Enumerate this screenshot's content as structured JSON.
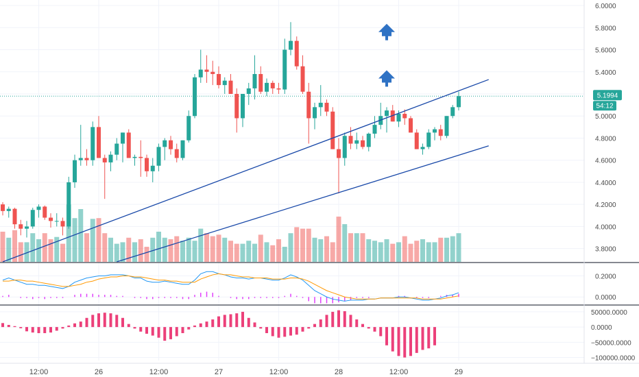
{
  "chart_data": [
    {
      "type": "candlestick",
      "y_ticks": [
        "6.0000",
        "5.8000",
        "5.6000",
        "5.4000",
        "5.2000",
        "5.0000",
        "4.8000",
        "4.6000",
        "4.4000",
        "4.2000",
        "4.0000",
        "3.8000"
      ],
      "ylim": [
        3.68,
        6.05
      ],
      "x_ticks": [
        {
          "label": "12:00",
          "bar": 6
        },
        {
          "label": "26",
          "bar": 16
        },
        {
          "label": "12:00",
          "bar": 26
        },
        {
          "label": "27",
          "bar": 36
        },
        {
          "label": "12:00",
          "bar": 46
        },
        {
          "label": "28",
          "bar": 56
        },
        {
          "label": "12:00",
          "bar": 66
        },
        {
          "label": "29",
          "bar": 76
        }
      ],
      "candles": [
        [
          4.2,
          4.22,
          4.1,
          4.14
        ],
        [
          4.14,
          4.18,
          4.08,
          4.16
        ],
        [
          4.16,
          4.17,
          3.98,
          4.02
        ],
        [
          4.02,
          4.06,
          3.92,
          3.98
        ],
        [
          3.98,
          4.05,
          3.9,
          4.0
        ],
        [
          4.0,
          4.17,
          3.98,
          4.15
        ],
        [
          4.15,
          4.2,
          4.08,
          4.18
        ],
        [
          4.18,
          4.19,
          4.06,
          4.08
        ],
        [
          4.08,
          4.12,
          3.99,
          4.05
        ],
        [
          4.05,
          4.12,
          4.0,
          4.05
        ],
        [
          4.05,
          4.08,
          3.92,
          4.0
        ],
        [
          4.0,
          4.45,
          3.98,
          4.4
        ],
        [
          4.4,
          4.65,
          4.35,
          4.6
        ],
        [
          4.6,
          4.92,
          4.55,
          4.62
        ],
        [
          4.62,
          4.7,
          4.55,
          4.6
        ],
        [
          4.6,
          4.95,
          4.55,
          4.9
        ],
        [
          4.9,
          5.0,
          4.62,
          4.62
        ],
        [
          4.62,
          4.65,
          4.25,
          4.58
        ],
        [
          4.58,
          4.68,
          4.5,
          4.65
        ],
        [
          4.65,
          4.8,
          4.6,
          4.75
        ],
        [
          4.75,
          4.85,
          4.58,
          4.85
        ],
        [
          4.85,
          4.88,
          4.62,
          4.62
        ],
        [
          4.62,
          4.65,
          4.55,
          4.63
        ],
        [
          4.63,
          4.78,
          4.45,
          4.62
        ],
        [
          4.62,
          4.65,
          4.45,
          4.5
        ],
        [
          4.5,
          4.62,
          4.4,
          4.55
        ],
        [
          4.55,
          4.75,
          4.5,
          4.72
        ],
        [
          4.72,
          4.8,
          4.6,
          4.78
        ],
        [
          4.78,
          4.82,
          4.65,
          4.7
        ],
        [
          4.7,
          4.75,
          4.58,
          4.62
        ],
        [
          4.62,
          4.78,
          4.6,
          4.78
        ],
        [
          4.78,
          5.05,
          4.76,
          5.0
        ],
        [
          5.0,
          5.38,
          4.98,
          5.35
        ],
        [
          5.35,
          5.6,
          5.3,
          5.42
        ],
        [
          5.42,
          5.55,
          5.3,
          5.4
        ],
        [
          5.4,
          5.5,
          5.28,
          5.38
        ],
        [
          5.38,
          5.45,
          5.25,
          5.28
        ],
        [
          5.28,
          5.35,
          5.2,
          5.32
        ],
        [
          5.32,
          5.38,
          5.2,
          5.2
        ],
        [
          5.2,
          5.25,
          4.85,
          4.98
        ],
        [
          4.98,
          5.2,
          4.9,
          5.2
        ],
        [
          5.2,
          5.3,
          5.1,
          5.25
        ],
        [
          5.25,
          5.55,
          5.15,
          5.38
        ],
        [
          5.38,
          5.45,
          5.2,
          5.22
        ],
        [
          5.22,
          5.34,
          5.18,
          5.3
        ],
        [
          5.3,
          5.32,
          5.2,
          5.25
        ],
        [
          5.25,
          5.3,
          5.2,
          5.24
        ],
        [
          5.24,
          5.7,
          5.2,
          5.6
        ],
        [
          5.6,
          5.85,
          5.55,
          5.68
        ],
        [
          5.68,
          5.72,
          5.42,
          5.45
        ],
        [
          5.45,
          5.55,
          5.2,
          5.22
        ],
        [
          5.22,
          5.3,
          4.75,
          4.98
        ],
        [
          4.98,
          5.12,
          4.88,
          5.08
        ],
        [
          5.08,
          5.28,
          5.0,
          5.12
        ],
        [
          5.12,
          5.15,
          5.0,
          5.04
        ],
        [
          5.04,
          5.08,
          4.7,
          4.7
        ],
        [
          4.7,
          4.8,
          4.3,
          4.62
        ],
        [
          4.62,
          4.85,
          4.55,
          4.82
        ],
        [
          4.82,
          4.9,
          4.7,
          4.75
        ],
        [
          4.75,
          4.85,
          4.7,
          4.78
        ],
        [
          4.78,
          4.82,
          4.7,
          4.72
        ],
        [
          4.72,
          4.85,
          4.68,
          4.84
        ],
        [
          4.84,
          5.0,
          4.8,
          4.92
        ],
        [
          4.92,
          5.12,
          4.88,
          5.0
        ],
        [
          5.0,
          5.08,
          4.85,
          5.05
        ],
        [
          5.05,
          5.1,
          4.95,
          4.95
        ],
        [
          4.95,
          5.05,
          4.9,
          5.02
        ],
        [
          5.02,
          5.06,
          4.92,
          4.98
        ],
        [
          4.98,
          5.0,
          4.85,
          4.85
        ],
        [
          4.85,
          4.88,
          4.7,
          4.7
        ],
        [
          4.7,
          4.75,
          4.65,
          4.72
        ],
        [
          4.72,
          4.88,
          4.7,
          4.85
        ],
        [
          4.85,
          4.9,
          4.78,
          4.88
        ],
        [
          4.88,
          4.92,
          4.78,
          4.82
        ],
        [
          4.82,
          5.0,
          4.8,
          5.0
        ],
        [
          5.0,
          5.1,
          4.98,
          5.08
        ],
        [
          5.08,
          5.22,
          5.05,
          5.18
        ]
      ],
      "volume": [
        40,
        32,
        42,
        26,
        26,
        38,
        30,
        38,
        30,
        33,
        24,
        76,
        58,
        70,
        38,
        57,
        58,
        38,
        32,
        24,
        26,
        32,
        26,
        30,
        20,
        32,
        40,
        32,
        30,
        34,
        28,
        32,
        28,
        44,
        38,
        34,
        36,
        32,
        28,
        24,
        24,
        28,
        24,
        36,
        26,
        22,
        30,
        20,
        38,
        46,
        44,
        44,
        32,
        30,
        34,
        26,
        60,
        50,
        38,
        38,
        38,
        30,
        28,
        26,
        30,
        24,
        26,
        34,
        24,
        28,
        30,
        26,
        26,
        32,
        32,
        34,
        38
      ],
      "volume_max": 100,
      "price_label": "5.1994",
      "countdown_label": "54:12",
      "bull_color": "#26a69a",
      "bear_color": "#ef5350",
      "trendlines": [
        {
          "from": {
            "bar": 0,
            "price": 3.68
          },
          "to": {
            "bar": 81,
            "price": 5.33
          }
        },
        {
          "from": {
            "bar": 19,
            "price": 3.68
          },
          "to": {
            "bar": 81,
            "price": 4.73
          }
        }
      ],
      "markers": [
        {
          "type": "arrow-up",
          "bar": 64,
          "price": 5.76
        },
        {
          "type": "arrow-up",
          "bar": 64,
          "price": 5.34
        }
      ]
    },
    {
      "type": "line",
      "y_ticks": [
        "0.2000",
        "0.0000"
      ],
      "ylim": [
        -0.07,
        0.32
      ],
      "series": [
        {
          "color": "#2196f3",
          "values": [
            0.16,
            0.18,
            0.16,
            0.14,
            0.12,
            0.12,
            0.11,
            0.11,
            0.1,
            0.09,
            0.08,
            0.1,
            0.14,
            0.16,
            0.18,
            0.19,
            0.2,
            0.2,
            0.21,
            0.21,
            0.21,
            0.2,
            0.18,
            0.18,
            0.15,
            0.14,
            0.14,
            0.15,
            0.14,
            0.13,
            0.12,
            0.12,
            0.16,
            0.22,
            0.24,
            0.24,
            0.22,
            0.21,
            0.19,
            0.18,
            0.18,
            0.17,
            0.18,
            0.18,
            0.17,
            0.16,
            0.16,
            0.18,
            0.21,
            0.19,
            0.16,
            0.11,
            0.06,
            0.03,
            0.0,
            -0.02,
            -0.03,
            -0.04,
            -0.03,
            -0.03,
            -0.03,
            -0.02,
            -0.02,
            -0.01,
            -0.01,
            -0.01,
            0.0,
            0.0,
            -0.01,
            -0.02,
            -0.03,
            -0.03,
            -0.02,
            -0.01,
            0.01,
            0.02,
            0.04
          ]
        },
        {
          "color": "#ff9800",
          "values": [
            0.15,
            0.15,
            0.16,
            0.16,
            0.15,
            0.15,
            0.14,
            0.13,
            0.12,
            0.11,
            0.1,
            0.1,
            0.11,
            0.12,
            0.14,
            0.15,
            0.17,
            0.18,
            0.19,
            0.19,
            0.2,
            0.2,
            0.19,
            0.19,
            0.18,
            0.17,
            0.16,
            0.16,
            0.15,
            0.15,
            0.14,
            0.14,
            0.14,
            0.17,
            0.19,
            0.21,
            0.22,
            0.21,
            0.21,
            0.2,
            0.19,
            0.19,
            0.18,
            0.18,
            0.18,
            0.17,
            0.17,
            0.17,
            0.18,
            0.18,
            0.17,
            0.15,
            0.12,
            0.09,
            0.06,
            0.04,
            0.02,
            0.0,
            -0.01,
            -0.02,
            -0.02,
            -0.02,
            -0.02,
            -0.01,
            -0.01,
            -0.01,
            -0.01,
            -0.01,
            -0.01,
            -0.01,
            -0.02,
            -0.02,
            -0.02,
            -0.02,
            -0.01,
            0.0,
            0.01
          ]
        }
      ],
      "histogram": [
        0.01,
        0.02,
        0.0,
        -0.01,
        -0.01,
        -0.02,
        -0.01,
        -0.02,
        -0.01,
        -0.01,
        -0.01,
        0.0,
        0.02,
        0.03,
        0.03,
        0.03,
        0.02,
        0.02,
        0.02,
        0.01,
        0.01,
        0.0,
        -0.01,
        -0.01,
        -0.02,
        -0.02,
        -0.01,
        -0.01,
        -0.01,
        -0.01,
        -0.02,
        -0.02,
        0.02,
        0.04,
        0.05,
        0.04,
        0.01,
        0.0,
        -0.01,
        -0.02,
        -0.02,
        -0.02,
        -0.01,
        -0.01,
        -0.01,
        -0.01,
        -0.01,
        0.01,
        0.03,
        0.01,
        -0.01,
        -0.04,
        -0.06,
        -0.06,
        -0.06,
        -0.06,
        -0.05,
        -0.04,
        -0.03,
        -0.01,
        -0.01,
        -0.01,
        0.0,
        0.0,
        0.0,
        0.0,
        0.01,
        0.01,
        0.0,
        -0.01,
        -0.01,
        -0.01,
        0.0,
        0.01,
        0.02,
        0.02,
        0.03
      ],
      "histogram_color": "#e040fb"
    },
    {
      "type": "bar",
      "y_ticks": [
        "50000.0000",
        "0.0000",
        "−50000.0000",
        "−100000.0000"
      ],
      "ylim": [
        -110000,
        70000
      ],
      "values": [
        13000,
        7000,
        3000,
        -4000,
        -14000,
        -18000,
        -20000,
        -20000,
        -18000,
        -12000,
        -5000,
        5000,
        12000,
        18000,
        30000,
        40000,
        45000,
        47000,
        45000,
        40000,
        30000,
        10000,
        -5000,
        -15000,
        -22000,
        -28000,
        -35000,
        -45000,
        -40000,
        -30000,
        -20000,
        -8000,
        5000,
        12000,
        18000,
        25000,
        35000,
        40000,
        42000,
        45000,
        50000,
        30000,
        15000,
        -5000,
        -20000,
        -30000,
        -35000,
        -32000,
        -28000,
        -25000,
        -15000,
        -5000,
        10000,
        25000,
        40000,
        50000,
        55000,
        52000,
        40000,
        25000,
        10000,
        -5000,
        -15000,
        -30000,
        -60000,
        -80000,
        -95000,
        -100000,
        -95000,
        -85000,
        -75000,
        -70000,
        -60000
      ],
      "color": "#ec407a"
    }
  ]
}
